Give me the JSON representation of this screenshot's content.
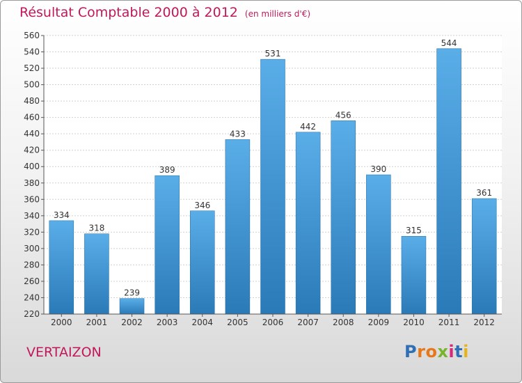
{
  "header": {
    "title": "Résultat Comptable 2000 à 2012",
    "subtitle": "(en milliers d'€)"
  },
  "footer": {
    "town": "VERTAIZON",
    "logo_letters": [
      "P",
      "r",
      "o",
      "x",
      "i",
      "t",
      "i"
    ],
    "logo_colors": [
      "#2f6fb5",
      "#e8771a",
      "#e8771a",
      "#7ab32e",
      "#d6297a",
      "#2f6fb5",
      "#e8b21a"
    ]
  },
  "colors": {
    "bar_light": "#5aaee8",
    "bar_dark": "#2a7ab8",
    "title": "#c0185a"
  },
  "chart_data": {
    "type": "bar",
    "categories": [
      "2000",
      "2001",
      "2002",
      "2003",
      "2004",
      "2005",
      "2006",
      "2007",
      "2008",
      "2009",
      "2010",
      "2011",
      "2012"
    ],
    "values": [
      334,
      318,
      239,
      389,
      346,
      433,
      531,
      442,
      456,
      390,
      315,
      544,
      361
    ],
    "ylim": [
      220,
      560
    ],
    "yticks": [
      220,
      240,
      260,
      280,
      300,
      320,
      340,
      360,
      380,
      400,
      420,
      440,
      460,
      480,
      500,
      520,
      540,
      560
    ],
    "grid": true
  }
}
